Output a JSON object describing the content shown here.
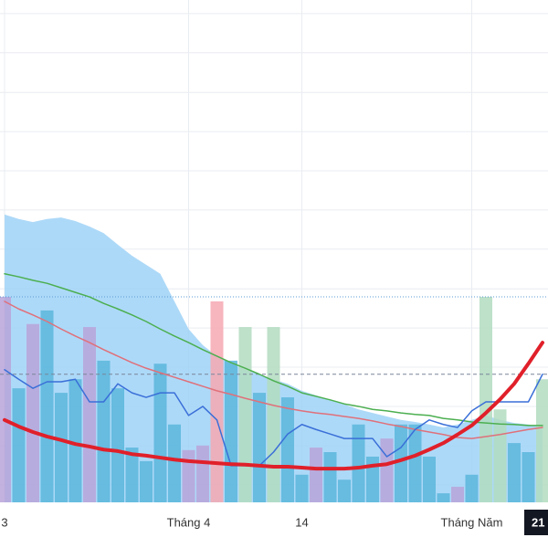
{
  "chart_data": {
    "type": "combo",
    "categories": [
      "3",
      null,
      null,
      null,
      null,
      null,
      null,
      null,
      null,
      null,
      null,
      null,
      null,
      "Tháng 4",
      null,
      null,
      null,
      null,
      null,
      null,
      null,
      "14",
      null,
      null,
      null,
      null,
      null,
      null,
      null,
      null,
      null,
      null,
      null,
      "Tháng Năm",
      null,
      null,
      null,
      null,
      "21"
    ],
    "ylim": [
      0,
      100
    ],
    "yticks": [
      3.5,
      11.3,
      19.1,
      26.9,
      34.7,
      42.5,
      50.4,
      58.2,
      66,
      73.8,
      81.6,
      89.5,
      97.3
    ],
    "grid": true,
    "hlines": [
      {
        "value": 40.9,
        "style": "dotted",
        "color": "#5b9bd5"
      },
      {
        "value": 25.5,
        "style": "dashed",
        "color": "#7a8599"
      }
    ],
    "series": [
      {
        "type": "area",
        "color": "#9fd2f7",
        "values": [
          57.3,
          56.4,
          55.8,
          56.4,
          56.7,
          56,
          54.9,
          53.6,
          51.3,
          49.1,
          47.3,
          45.5,
          40,
          34.5,
          31.3,
          29.1,
          27.6,
          26.4,
          25.5,
          24.5,
          23.6,
          22.2,
          21.3,
          20.4,
          19.5,
          18.5,
          17.8,
          17.1,
          16.4,
          16,
          15.5,
          14.9,
          15.5,
          16.4,
          17.3,
          16.4,
          15.8,
          15.5,
          14.9
        ]
      },
      {
        "type": "bar",
        "values": [
          40.9,
          22.7,
          35.5,
          38.2,
          21.8,
          24.5,
          34.9,
          28.2,
          22.7,
          10.9,
          8.2,
          27.6,
          15.5,
          10.4,
          11.3,
          40,
          28.2,
          34.9,
          21.8,
          34.9,
          20.9,
          5.5,
          10.9,
          10,
          4.5,
          15.5,
          9.1,
          12.7,
          15.5,
          15.5,
          9.1,
          1.8,
          3.1,
          5.5,
          40.9,
          18.5,
          11.8,
          10,
          24.5
        ],
        "colors": [
          "#b9a3d9",
          "#5ab6dc",
          "#b9a3d9",
          "#5ab6dc",
          "#5ab6dc",
          "#5ab6dc",
          "#b9a3d9",
          "#5ab6dc",
          "#5ab6dc",
          "#5ab6dc",
          "#5ab6dc",
          "#5ab6dc",
          "#5ab6dc",
          "#b9a3d9",
          "#b9a3d9",
          "#f6a8b2",
          "#5ab6dc",
          "#b2dcc0",
          "#5ab6dc",
          "#b2dcc0",
          "#5ab6dc",
          "#5ab6dc",
          "#b9a3d9",
          "#5ab6dc",
          "#5ab6dc",
          "#5ab6dc",
          "#5ab6dc",
          "#b9a3d9",
          "#5ab6dc",
          "#5ab6dc",
          "#5ab6dc",
          "#5ab6dc",
          "#b9a3d9",
          "#5ab6dc",
          "#b2dcc0",
          "#b2dcc0",
          "#5ab6dc",
          "#5ab6dc",
          "#b2dcc0"
        ]
      },
      {
        "type": "line",
        "color": "#4caf50",
        "width": 1.5,
        "values": [
          45.5,
          44.9,
          44.2,
          43.6,
          42.7,
          41.8,
          40.9,
          39.6,
          38.5,
          37.3,
          36,
          34.5,
          33.1,
          31.8,
          30.4,
          29.1,
          27.8,
          26.7,
          25.5,
          24.2,
          23.1,
          21.8,
          21.1,
          20.4,
          19.6,
          19.1,
          18.5,
          18.2,
          17.8,
          17.5,
          17.3,
          16.7,
          16.4,
          16,
          15.8,
          15.6,
          15.5,
          15.3,
          15.3
        ]
      },
      {
        "type": "line",
        "color": "#e0707a",
        "width": 1.5,
        "values": [
          40,
          38.5,
          37.3,
          36,
          34.5,
          33.1,
          31.8,
          30.4,
          29.1,
          27.8,
          26.7,
          25.8,
          24.9,
          24,
          23.1,
          22.2,
          21.5,
          20.7,
          20,
          19.3,
          18.7,
          18.2,
          17.8,
          17.5,
          17.1,
          16.7,
          16.2,
          15.6,
          15.1,
          14.5,
          14,
          13.5,
          12.9,
          12.7,
          13.1,
          13.5,
          14,
          14.5,
          14.9
        ]
      },
      {
        "type": "line",
        "color": "#3a6fd8",
        "width": 1.5,
        "values": [
          26.4,
          24.5,
          22.7,
          24,
          24,
          24.5,
          20,
          20,
          23.6,
          21.8,
          20.9,
          21.8,
          21.8,
          17.3,
          19.1,
          16.4,
          7.3,
          7.3,
          7.3,
          10,
          13.6,
          15.5,
          14.5,
          13.6,
          12.7,
          12.7,
          12.7,
          9.1,
          10.9,
          14.5,
          16.4,
          15.5,
          14.9,
          18.2,
          20,
          20,
          20,
          20,
          25.5
        ]
      },
      {
        "type": "line",
        "color": "#e0202a",
        "width": 4,
        "values": [
          16.4,
          15.1,
          14,
          13.1,
          12.4,
          11.6,
          11.1,
          10.5,
          10.2,
          9.6,
          9.3,
          8.9,
          8.5,
          8.2,
          8,
          7.8,
          7.6,
          7.5,
          7.3,
          7.1,
          7.1,
          6.9,
          6.7,
          6.7,
          6.7,
          6.9,
          7.3,
          7.6,
          8.4,
          9.3,
          10.5,
          11.8,
          13.5,
          15.3,
          17.8,
          20.5,
          23.6,
          27.6,
          31.8
        ]
      }
    ]
  }
}
